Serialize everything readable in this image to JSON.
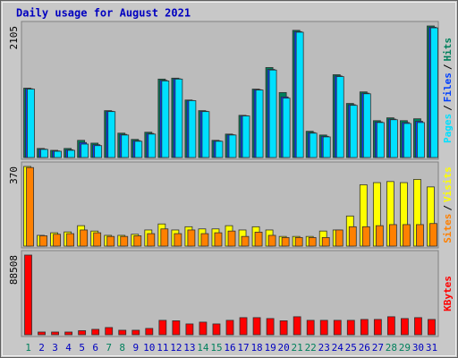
{
  "chart_data": [
    {
      "type": "bar",
      "title": "Daily usage for August 2021",
      "ylim": [
        0,
        2105
      ],
      "yticks": [
        2105
      ],
      "legend_separator": "/",
      "series": [
        {
          "name": "Hits",
          "color": "#00805c",
          "values": [
            1110,
            145,
            115,
            145,
            275,
            230,
            750,
            390,
            290,
            405,
            1255,
            1270,
            920,
            750,
            275,
            375,
            675,
            1095,
            1440,
            1040,
            2035,
            420,
            360,
            1325,
            865,
            1050,
            590,
            635,
            590,
            620,
            2105
          ]
        },
        {
          "name": "Files",
          "color": "#0040ff",
          "values": [
            1100,
            135,
            105,
            125,
            240,
            205,
            740,
            370,
            270,
            385,
            1235,
            1260,
            912,
            740,
            265,
            365,
            668,
            1085,
            1410,
            970,
            2015,
            400,
            340,
            1305,
            845,
            1030,
            570,
            615,
            560,
            580,
            2085
          ]
        },
        {
          "name": "Pages",
          "color": "#00e0ff",
          "values": [
            1095,
            130,
            100,
            115,
            215,
            190,
            735,
            360,
            260,
            375,
            1225,
            1255,
            910,
            735,
            260,
            360,
            665,
            1080,
            1400,
            950,
            2005,
            390,
            330,
            1295,
            835,
            1020,
            560,
            605,
            545,
            560,
            2075
          ]
        }
      ]
    },
    {
      "type": "bar",
      "ylim": [
        0,
        370
      ],
      "yticks": [
        370
      ],
      "legend_separator": "/",
      "series": [
        {
          "name": "Visits",
          "color": "#ffff00",
          "values": [
            370,
            50,
            62,
            66,
            95,
            70,
            50,
            50,
            55,
            75,
            103,
            75,
            90,
            80,
            80,
            95,
            75,
            90,
            75,
            45,
            45,
            45,
            70,
            75,
            140,
            285,
            295,
            300,
            295,
            310,
            275
          ]
        },
        {
          "name": "Sites",
          "color": "#ff8000",
          "values": [
            365,
            48,
            55,
            58,
            75,
            62,
            45,
            45,
            48,
            58,
            80,
            58,
            75,
            58,
            62,
            70,
            45,
            65,
            50,
            40,
            40,
            40,
            40,
            75,
            90,
            90,
            95,
            100,
            100,
            100,
            105
          ]
        }
      ]
    },
    {
      "type": "bar",
      "ylim": [
        0,
        88508
      ],
      "yticks": [
        88508
      ],
      "categories": [
        "1",
        "2",
        "3",
        "4",
        "5",
        "6",
        "7",
        "8",
        "9",
        "10",
        "11",
        "12",
        "13",
        "14",
        "15",
        "16",
        "17",
        "18",
        "19",
        "20",
        "21",
        "22",
        "23",
        "24",
        "25",
        "26",
        "27",
        "28",
        "29",
        "30",
        "31"
      ],
      "label_colors": [
        "#00805c",
        "#0000c0",
        "#0000c0",
        "#0000c0",
        "#0000c0",
        "#0000c0",
        "#00805c",
        "#00805c",
        "#0000c0",
        "#0000c0",
        "#0000c0",
        "#0000c0",
        "#0000c0",
        "#00805c",
        "#00805c",
        "#0000c0",
        "#0000c0",
        "#0000c0",
        "#0000c0",
        "#0000c0",
        "#00805c",
        "#00805c",
        "#0000c0",
        "#0000c0",
        "#0000c0",
        "#0000c0",
        "#0000c0",
        "#00805c",
        "#00805c",
        "#0000c0",
        "#0000c0"
      ],
      "series": [
        {
          "name": "KBytes",
          "color": "#ff0000",
          "values": [
            88508,
            3000,
            3000,
            3000,
            4500,
            6000,
            8000,
            5000,
            5000,
            7000,
            16000,
            15500,
            12000,
            14000,
            12000,
            16000,
            19000,
            19000,
            18000,
            15500,
            20000,
            16000,
            16000,
            16000,
            16000,
            17000,
            17000,
            20000,
            18000,
            19000,
            17000
          ]
        }
      ]
    }
  ]
}
